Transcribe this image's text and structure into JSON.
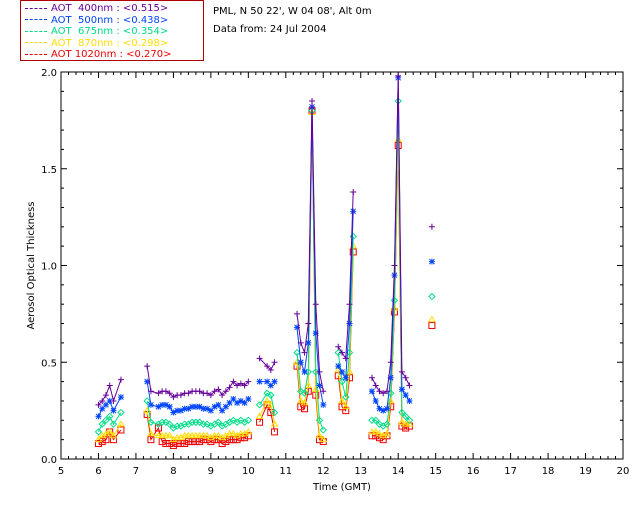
{
  "legend": [
    {
      "label": "AOT  400nm : <0.515>",
      "color": "#660099"
    },
    {
      "label": "AOT  500nm : <0.438>",
      "color": "#0044ff"
    },
    {
      "label": "AOT  675nm : <0.354>",
      "color": "#00dd88"
    },
    {
      "label": "AOT  870nm : <0.298>",
      "color": "#ffdd00"
    },
    {
      "label": "AOT 1020nm : <0.270>",
      "color": "#ee0000"
    }
  ],
  "info": {
    "site": "PML, N 50 22', W 04 08', Alt 0m",
    "date": "Data from: 24 Jul 2004"
  },
  "chart_data": {
    "type": "line",
    "xlabel": "Time (GMT)",
    "ylabel": "Aerosol Optical Thickness",
    "xlim": [
      5,
      20
    ],
    "ylim": [
      0,
      2.0
    ],
    "xticks": [
      "5",
      "6",
      "7",
      "8",
      "9",
      "10",
      "11",
      "12",
      "13",
      "14",
      "15",
      "16",
      "17",
      "18",
      "19",
      "20"
    ],
    "yticks": [
      "0.0",
      "0.5",
      "1.0",
      "1.5",
      "2.0"
    ],
    "x": [
      6.0,
      6.1,
      6.2,
      6.3,
      6.4,
      6.6,
      7.3,
      7.4,
      7.6,
      7.7,
      7.8,
      7.9,
      8.0,
      8.1,
      8.2,
      8.3,
      8.4,
      8.5,
      8.6,
      8.7,
      8.8,
      8.9,
      9.0,
      9.1,
      9.2,
      9.3,
      9.4,
      9.5,
      9.6,
      9.7,
      9.8,
      9.9,
      10.0,
      10.3,
      10.5,
      10.6,
      10.7,
      11.3,
      11.4,
      11.5,
      11.6,
      11.7,
      11.8,
      11.9,
      12.0,
      12.4,
      12.5,
      12.6,
      12.7,
      12.8,
      13.3,
      13.4,
      13.5,
      13.6,
      13.7,
      13.8,
      13.9,
      14.0,
      14.1,
      14.2,
      14.3,
      14.9
    ],
    "series": [
      {
        "name": "AOT 400nm",
        "marker": "+",
        "values": [
          0.28,
          0.3,
          0.33,
          0.38,
          0.3,
          0.41,
          0.48,
          0.35,
          0.34,
          0.35,
          0.35,
          0.34,
          0.32,
          0.33,
          0.33,
          0.34,
          0.34,
          0.35,
          0.35,
          0.35,
          0.34,
          0.34,
          0.33,
          0.35,
          0.36,
          0.33,
          0.35,
          0.37,
          0.4,
          0.38,
          0.39,
          0.38,
          0.4,
          0.52,
          0.48,
          0.46,
          0.5,
          0.75,
          0.6,
          0.55,
          0.7,
          1.85,
          0.8,
          0.45,
          0.35,
          0.58,
          0.55,
          0.52,
          0.8,
          1.38,
          0.42,
          0.38,
          0.35,
          0.34,
          0.35,
          0.5,
          1.0,
          1.98,
          0.45,
          0.42,
          0.38,
          1.2
        ]
      },
      {
        "name": "AOT 500nm",
        "marker": "*",
        "values": [
          0.22,
          0.26,
          0.28,
          0.3,
          0.25,
          0.32,
          0.4,
          0.28,
          0.27,
          0.28,
          0.28,
          0.27,
          0.24,
          0.25,
          0.25,
          0.26,
          0.26,
          0.27,
          0.27,
          0.27,
          0.26,
          0.26,
          0.25,
          0.27,
          0.28,
          0.25,
          0.27,
          0.29,
          0.31,
          0.29,
          0.3,
          0.29,
          0.31,
          0.4,
          0.4,
          0.38,
          0.4,
          0.68,
          0.5,
          0.45,
          0.6,
          1.82,
          0.65,
          0.38,
          0.28,
          0.48,
          0.45,
          0.42,
          0.7,
          1.28,
          0.35,
          0.3,
          0.26,
          0.25,
          0.26,
          0.42,
          0.95,
          1.97,
          0.36,
          0.33,
          0.3,
          1.02
        ]
      },
      {
        "name": "AOT 675nm",
        "marker": "diamond",
        "values": [
          0.14,
          0.18,
          0.2,
          0.22,
          0.18,
          0.24,
          0.3,
          0.19,
          0.18,
          0.19,
          0.19,
          0.18,
          0.16,
          0.17,
          0.17,
          0.18,
          0.18,
          0.19,
          0.19,
          0.19,
          0.18,
          0.18,
          0.17,
          0.18,
          0.19,
          0.17,
          0.18,
          0.19,
          0.2,
          0.19,
          0.2,
          0.19,
          0.2,
          0.28,
          0.34,
          0.33,
          0.24,
          0.55,
          0.35,
          0.34,
          0.45,
          1.8,
          0.45,
          0.2,
          0.15,
          0.55,
          0.4,
          0.32,
          0.55,
          1.15,
          0.2,
          0.2,
          0.18,
          0.17,
          0.18,
          0.34,
          0.82,
          1.85,
          0.24,
          0.22,
          0.2,
          0.84
        ]
      },
      {
        "name": "AOT 870nm",
        "marker": "triangle",
        "values": [
          0.1,
          0.12,
          0.13,
          0.14,
          0.12,
          0.18,
          0.25,
          0.13,
          0.12,
          0.12,
          0.12,
          0.12,
          0.1,
          0.11,
          0.11,
          0.12,
          0.12,
          0.12,
          0.12,
          0.12,
          0.12,
          0.12,
          0.11,
          0.12,
          0.12,
          0.11,
          0.12,
          0.13,
          0.13,
          0.12,
          0.13,
          0.13,
          0.14,
          0.22,
          0.3,
          0.28,
          0.18,
          0.5,
          0.3,
          0.29,
          0.38,
          1.79,
          0.36,
          0.12,
          0.1,
          0.46,
          0.3,
          0.27,
          0.45,
          1.1,
          0.14,
          0.14,
          0.13,
          0.12,
          0.13,
          0.3,
          0.78,
          1.65,
          0.19,
          0.18,
          0.18,
          0.72
        ]
      },
      {
        "name": "AOT 1020nm",
        "marker": "square",
        "values": [
          0.08,
          0.09,
          0.1,
          0.14,
          0.1,
          0.15,
          0.23,
          0.1,
          0.16,
          0.09,
          0.08,
          0.08,
          0.07,
          0.08,
          0.08,
          0.08,
          0.09,
          0.09,
          0.09,
          0.09,
          0.1,
          0.1,
          0.09,
          0.1,
          0.1,
          0.08,
          0.09,
          0.1,
          0.1,
          0.1,
          0.11,
          0.11,
          0.12,
          0.19,
          0.28,
          0.24,
          0.14,
          0.48,
          0.27,
          0.26,
          0.35,
          1.8,
          0.33,
          0.1,
          0.09,
          0.43,
          0.27,
          0.25,
          0.42,
          1.07,
          0.12,
          0.12,
          0.11,
          0.1,
          0.12,
          0.27,
          0.76,
          1.62,
          0.17,
          0.16,
          0.17,
          0.69
        ]
      }
    ]
  }
}
